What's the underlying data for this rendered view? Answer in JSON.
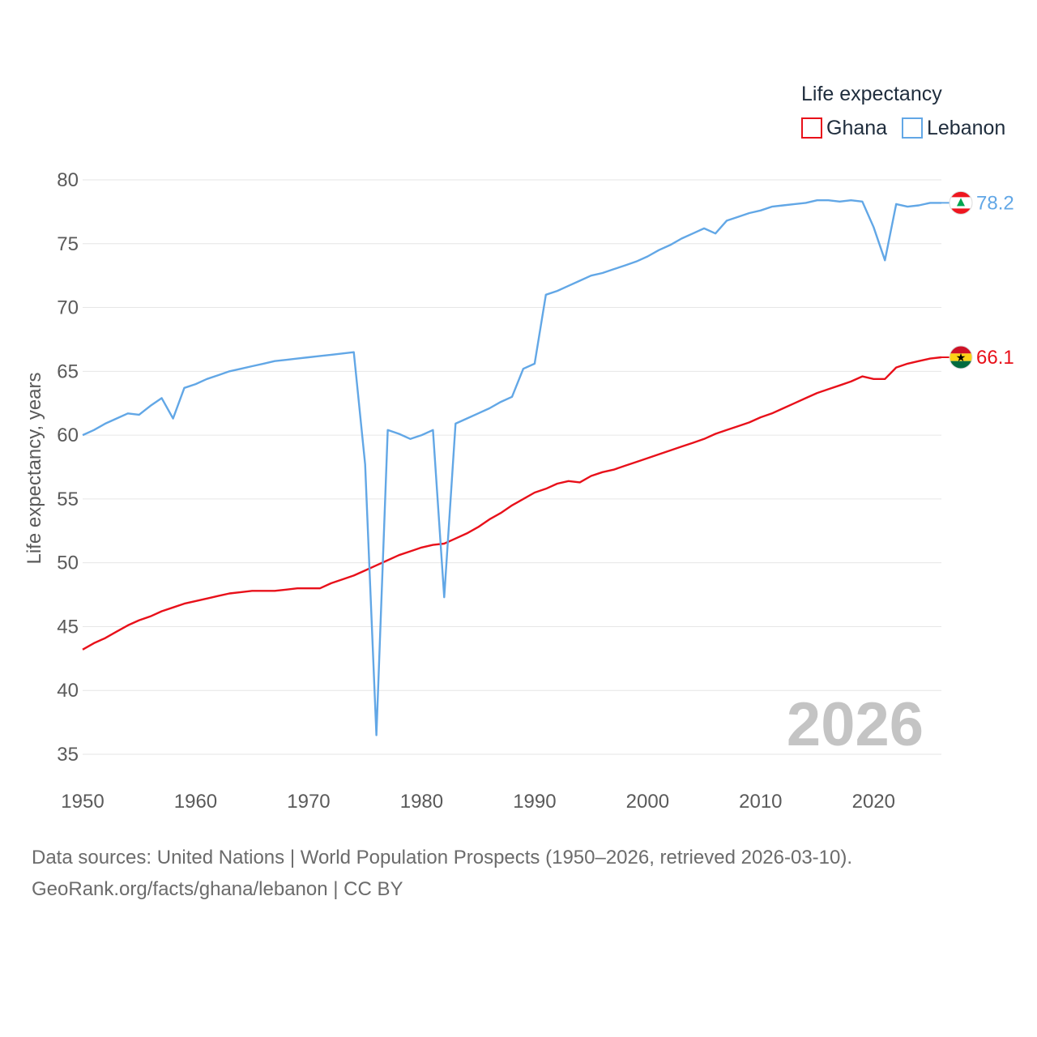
{
  "chart_data": {
    "type": "line",
    "ylabel": "Life expectancy, years",
    "ylim": [
      35,
      80
    ],
    "xlim": [
      1950,
      2026
    ],
    "y_ticks": [
      35,
      40,
      45,
      50,
      55,
      60,
      65,
      70,
      75,
      80
    ],
    "x_ticks": [
      1950,
      1960,
      1970,
      1980,
      1990,
      2000,
      2010,
      2020
    ],
    "grid": true,
    "legend": {
      "title": "Life expectancy",
      "position": "top-right"
    },
    "year_label": "2026",
    "series": [
      {
        "name": "Ghana",
        "color": "#e8101a",
        "flag": "ghana-flag",
        "end_label": "66.1",
        "points": [
          [
            1950,
            43.2
          ],
          [
            1951,
            43.7
          ],
          [
            1952,
            44.1
          ],
          [
            1953,
            44.6
          ],
          [
            1954,
            45.1
          ],
          [
            1955,
            45.5
          ],
          [
            1956,
            45.8
          ],
          [
            1957,
            46.2
          ],
          [
            1958,
            46.5
          ],
          [
            1959,
            46.8
          ],
          [
            1960,
            47.0
          ],
          [
            1961,
            47.2
          ],
          [
            1962,
            47.4
          ],
          [
            1963,
            47.6
          ],
          [
            1964,
            47.7
          ],
          [
            1965,
            47.8
          ],
          [
            1966,
            47.8
          ],
          [
            1967,
            47.8
          ],
          [
            1968,
            47.9
          ],
          [
            1969,
            48.0
          ],
          [
            1970,
            48.0
          ],
          [
            1971,
            48.0
          ],
          [
            1972,
            48.4
          ],
          [
            1973,
            48.7
          ],
          [
            1974,
            49.0
          ],
          [
            1975,
            49.4
          ],
          [
            1976,
            49.8
          ],
          [
            1977,
            50.2
          ],
          [
            1978,
            50.6
          ],
          [
            1979,
            50.9
          ],
          [
            1980,
            51.2
          ],
          [
            1981,
            51.4
          ],
          [
            1982,
            51.5
          ],
          [
            1983,
            51.9
          ],
          [
            1984,
            52.3
          ],
          [
            1985,
            52.8
          ],
          [
            1986,
            53.4
          ],
          [
            1987,
            53.9
          ],
          [
            1988,
            54.5
          ],
          [
            1989,
            55.0
          ],
          [
            1990,
            55.5
          ],
          [
            1991,
            55.8
          ],
          [
            1992,
            56.2
          ],
          [
            1993,
            56.4
          ],
          [
            1994,
            56.3
          ],
          [
            1995,
            56.8
          ],
          [
            1996,
            57.1
          ],
          [
            1997,
            57.3
          ],
          [
            1998,
            57.6
          ],
          [
            1999,
            57.9
          ],
          [
            2000,
            58.2
          ],
          [
            2001,
            58.5
          ],
          [
            2002,
            58.8
          ],
          [
            2003,
            59.1
          ],
          [
            2004,
            59.4
          ],
          [
            2005,
            59.7
          ],
          [
            2006,
            60.1
          ],
          [
            2007,
            60.4
          ],
          [
            2008,
            60.7
          ],
          [
            2009,
            61.0
          ],
          [
            2010,
            61.4
          ],
          [
            2011,
            61.7
          ],
          [
            2012,
            62.1
          ],
          [
            2013,
            62.5
          ],
          [
            2014,
            62.9
          ],
          [
            2015,
            63.3
          ],
          [
            2016,
            63.6
          ],
          [
            2017,
            63.9
          ],
          [
            2018,
            64.2
          ],
          [
            2019,
            64.6
          ],
          [
            2020,
            64.4
          ],
          [
            2021,
            64.4
          ],
          [
            2022,
            65.3
          ],
          [
            2023,
            65.6
          ],
          [
            2024,
            65.8
          ],
          [
            2025,
            66.0
          ],
          [
            2026,
            66.1
          ]
        ]
      },
      {
        "name": "Lebanon",
        "color": "#62a7e6",
        "flag": "lebanon-flag",
        "end_label": "78.2",
        "points": [
          [
            1950,
            60.0
          ],
          [
            1951,
            60.4
          ],
          [
            1952,
            60.9
          ],
          [
            1953,
            61.3
          ],
          [
            1954,
            61.7
          ],
          [
            1955,
            61.6
          ],
          [
            1956,
            62.3
          ],
          [
            1957,
            62.9
          ],
          [
            1958,
            61.3
          ],
          [
            1959,
            63.7
          ],
          [
            1960,
            64.0
          ],
          [
            1961,
            64.4
          ],
          [
            1962,
            64.7
          ],
          [
            1963,
            65.0
          ],
          [
            1964,
            65.2
          ],
          [
            1965,
            65.4
          ],
          [
            1966,
            65.6
          ],
          [
            1967,
            65.8
          ],
          [
            1968,
            65.9
          ],
          [
            1969,
            66.0
          ],
          [
            1970,
            66.1
          ],
          [
            1971,
            66.2
          ],
          [
            1972,
            66.3
          ],
          [
            1973,
            66.4
          ],
          [
            1974,
            66.5
          ],
          [
            1975,
            57.7
          ],
          [
            1976,
            36.5
          ],
          [
            1977,
            60.4
          ],
          [
            1978,
            60.1
          ],
          [
            1979,
            59.7
          ],
          [
            1980,
            60.0
          ],
          [
            1981,
            60.4
          ],
          [
            1982,
            47.3
          ],
          [
            1983,
            60.9
          ],
          [
            1984,
            61.3
          ],
          [
            1985,
            61.7
          ],
          [
            1986,
            62.1
          ],
          [
            1987,
            62.6
          ],
          [
            1988,
            63.0
          ],
          [
            1989,
            65.2
          ],
          [
            1990,
            65.6
          ],
          [
            1991,
            71.0
          ],
          [
            1992,
            71.3
          ],
          [
            1993,
            71.7
          ],
          [
            1994,
            72.1
          ],
          [
            1995,
            72.5
          ],
          [
            1996,
            72.7
          ],
          [
            1997,
            73.0
          ],
          [
            1998,
            73.3
          ],
          [
            1999,
            73.6
          ],
          [
            2000,
            74.0
          ],
          [
            2001,
            74.5
          ],
          [
            2002,
            74.9
          ],
          [
            2003,
            75.4
          ],
          [
            2004,
            75.8
          ],
          [
            2005,
            76.2
          ],
          [
            2006,
            75.8
          ],
          [
            2007,
            76.8
          ],
          [
            2008,
            77.1
          ],
          [
            2009,
            77.4
          ],
          [
            2010,
            77.6
          ],
          [
            2011,
            77.9
          ],
          [
            2012,
            78.0
          ],
          [
            2013,
            78.1
          ],
          [
            2014,
            78.2
          ],
          [
            2015,
            78.4
          ],
          [
            2016,
            78.4
          ],
          [
            2017,
            78.3
          ],
          [
            2018,
            78.4
          ],
          [
            2019,
            78.3
          ],
          [
            2020,
            76.3
          ],
          [
            2021,
            73.7
          ],
          [
            2022,
            78.1
          ],
          [
            2023,
            77.9
          ],
          [
            2024,
            78.0
          ],
          [
            2025,
            78.2
          ],
          [
            2026,
            78.2
          ]
        ]
      }
    ]
  },
  "footer": {
    "sources": "Data sources: United Nations | World Population Prospects (1950–2026, retrieved 2026-03-10).",
    "attribution": "GeoRank.org/facts/ghana/lebanon | CC BY"
  }
}
